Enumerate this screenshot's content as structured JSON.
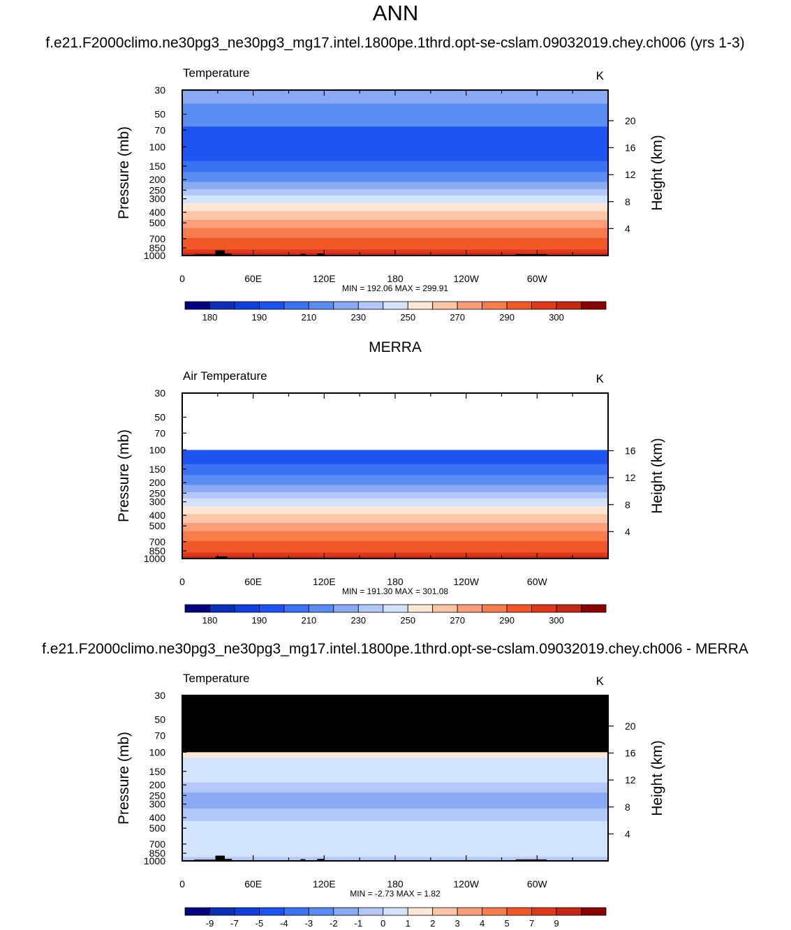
{
  "page_title": "ANN",
  "chart_data": [
    {
      "type": "heatmap",
      "heading": "f.e21.F2000climo.ne30pg3_ne30pg3_mg17.intel.1800pe.1thrd.opt-se-cslam.09032019.chey.ch006 (yrs 1-3)",
      "variable": "Temperature",
      "units": "K",
      "ylabel": "Pressure (mb)",
      "ylabel_right": "Height (km)",
      "ylim": [
        1000,
        30
      ],
      "yscale": "log",
      "pressure_ticks": [
        30,
        50,
        70,
        100,
        150,
        200,
        250,
        300,
        400,
        500,
        700,
        850,
        1000
      ],
      "height_ticks": [
        4,
        8,
        12,
        16,
        20
      ],
      "xlim": [
        0,
        360
      ],
      "x_ticks": [
        {
          "lon": 0,
          "label": "0"
        },
        {
          "lon": 60,
          "label": "60E"
        },
        {
          "lon": 120,
          "label": "120E"
        },
        {
          "lon": 180,
          "label": "180"
        },
        {
          "lon": 240,
          "label": "120W"
        },
        {
          "lon": 300,
          "label": "60W"
        }
      ],
      "stats": "MIN = 192.06  MAX = 299.91",
      "missing_above": null,
      "colorbar_labels": [
        "180",
        "190",
        "210",
        "230",
        "250",
        "270",
        "290",
        "300"
      ],
      "bands": [
        {
          "p": 30,
          "color": "#8aaaf4"
        },
        {
          "p": 40,
          "color": "#5b8cf2"
        },
        {
          "p": 65,
          "color": "#1d54f0"
        },
        {
          "p": 135,
          "color": "#3a72f4"
        },
        {
          "p": 170,
          "color": "#5b8cf2"
        },
        {
          "p": 210,
          "color": "#8aaaf4"
        },
        {
          "p": 245,
          "color": "#b3c8f8"
        },
        {
          "p": 280,
          "color": "#d4e3fc"
        },
        {
          "p": 330,
          "color": "#fee6d4"
        },
        {
          "p": 390,
          "color": "#fcc5a6"
        },
        {
          "p": 470,
          "color": "#f99e79"
        },
        {
          "p": 560,
          "color": "#f77c4c"
        },
        {
          "p": 690,
          "color": "#f25728"
        },
        {
          "p": 880,
          "color": "#e0381a"
        },
        {
          "p": 950,
          "color": "#c42812"
        }
      ],
      "terrain": [
        {
          "lon0": 10,
          "lon1": 30,
          "p": 975
        },
        {
          "lon0": 28,
          "lon1": 36,
          "p": 895
        },
        {
          "lon0": 36,
          "lon1": 42,
          "p": 960
        },
        {
          "lon0": 100,
          "lon1": 104,
          "p": 965
        },
        {
          "lon0": 114,
          "lon1": 120,
          "p": 960
        },
        {
          "lon0": 282,
          "lon1": 308,
          "p": 970
        }
      ]
    },
    {
      "type": "heatmap",
      "heading": "MERRA",
      "variable": "Air Temperature",
      "units": "K",
      "ylabel": "Pressure (mb)",
      "ylabel_right": "Height (km)",
      "ylim": [
        1000,
        30
      ],
      "yscale": "log",
      "pressure_ticks": [
        30,
        50,
        70,
        100,
        150,
        200,
        250,
        300,
        400,
        500,
        700,
        850,
        1000
      ],
      "height_ticks": [
        4,
        8,
        12,
        16
      ],
      "xlim": [
        0,
        360
      ],
      "x_ticks": [
        {
          "lon": 0,
          "label": "0"
        },
        {
          "lon": 60,
          "label": "60E"
        },
        {
          "lon": 120,
          "label": "120E"
        },
        {
          "lon": 180,
          "label": "180"
        },
        {
          "lon": 240,
          "label": "120W"
        },
        {
          "lon": 300,
          "label": "60W"
        }
      ],
      "stats": "MIN = 191.30  MAX = 301.08",
      "missing_above": 100,
      "missing_color": "#ffffff",
      "colorbar_labels": [
        "180",
        "190",
        "210",
        "230",
        "250",
        "270",
        "290",
        "300"
      ],
      "bands": [
        {
          "p": 100,
          "color": "#1d54f0"
        },
        {
          "p": 135,
          "color": "#3a72f4"
        },
        {
          "p": 170,
          "color": "#5b8cf2"
        },
        {
          "p": 210,
          "color": "#8aaaf4"
        },
        {
          "p": 245,
          "color": "#b3c8f8"
        },
        {
          "p": 280,
          "color": "#d4e3fc"
        },
        {
          "p": 330,
          "color": "#fee6d4"
        },
        {
          "p": 390,
          "color": "#fcc5a6"
        },
        {
          "p": 470,
          "color": "#f99e79"
        },
        {
          "p": 560,
          "color": "#f77c4c"
        },
        {
          "p": 690,
          "color": "#f25728"
        },
        {
          "p": 880,
          "color": "#e0381a"
        },
        {
          "p": 950,
          "color": "#c42812"
        }
      ],
      "terrain": [
        {
          "lon0": 12,
          "lon1": 28,
          "p": 985
        },
        {
          "lon0": 28,
          "lon1": 38,
          "p": 955
        },
        {
          "lon0": 284,
          "lon1": 306,
          "p": 985
        }
      ]
    },
    {
      "type": "heatmap",
      "heading": "f.e21.F2000climo.ne30pg3_ne30pg3_mg17.intel.1800pe.1thrd.opt-se-cslam.09032019.chey.ch006 - MERRA",
      "variable": "Temperature",
      "units": "K",
      "ylabel": "Pressure (mb)",
      "ylabel_right": "Height (km)",
      "ylim": [
        1000,
        30
      ],
      "yscale": "log",
      "pressure_ticks": [
        30,
        50,
        70,
        100,
        150,
        200,
        250,
        300,
        400,
        500,
        700,
        850,
        1000
      ],
      "height_ticks": [
        4,
        8,
        12,
        16,
        20
      ],
      "xlim": [
        0,
        360
      ],
      "x_ticks": [
        {
          "lon": 0,
          "label": "0"
        },
        {
          "lon": 60,
          "label": "60E"
        },
        {
          "lon": 120,
          "label": "120E"
        },
        {
          "lon": 180,
          "label": "180"
        },
        {
          "lon": 240,
          "label": "120W"
        },
        {
          "lon": 300,
          "label": "60W"
        }
      ],
      "stats": "MIN =  -2.73  MAX =   1.82",
      "missing_above": 100,
      "missing_color": "#000000",
      "colorbar_labels": [
        "-9",
        "-7",
        "-5",
        "-4",
        "-3",
        "-2",
        "-1",
        "0",
        "1",
        "2",
        "3",
        "4",
        "5",
        "7",
        "9"
      ],
      "bands": [
        {
          "p": 100,
          "color": "#fee6d4"
        },
        {
          "p": 112,
          "color": "#d4e3fc"
        },
        {
          "p": 190,
          "color": "#b3c8f8"
        },
        {
          "p": 235,
          "color": "#8aaaf4"
        },
        {
          "p": 330,
          "color": "#b3c8f8"
        },
        {
          "p": 430,
          "color": "#d4e3fc"
        },
        {
          "p": 920,
          "color": "#b3c8f8"
        }
      ],
      "terrain": [
        {
          "lon0": 10,
          "lon1": 30,
          "p": 975
        },
        {
          "lon0": 28,
          "lon1": 36,
          "p": 895
        },
        {
          "lon0": 36,
          "lon1": 42,
          "p": 960
        },
        {
          "lon0": 100,
          "lon1": 104,
          "p": 965
        },
        {
          "lon0": 114,
          "lon1": 120,
          "p": 960
        },
        {
          "lon0": 282,
          "lon1": 308,
          "p": 970
        }
      ]
    }
  ],
  "palette": [
    "#000080",
    "#0a2fb8",
    "#0f40dd",
    "#1d54f0",
    "#3a72f4",
    "#5b8cf2",
    "#8aaaf4",
    "#b3c8f8",
    "#d4e3fc",
    "#fee6d4",
    "#fcc5a6",
    "#f99e79",
    "#f77c4c",
    "#f25728",
    "#e0381a",
    "#c42812",
    "#8b0000"
  ]
}
